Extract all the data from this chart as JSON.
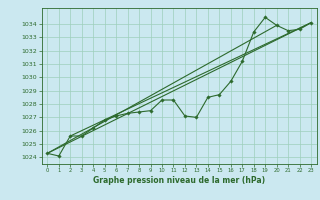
{
  "xlabel": "Graphe pression niveau de la mer (hPa)",
  "bg_color": "#cbe8f0",
  "grid_color": "#9ecfbb",
  "line_color": "#2d6a2d",
  "ylim": [
    1023.5,
    1035.2
  ],
  "xlim": [
    -0.5,
    23.5
  ],
  "yticks": [
    1024,
    1025,
    1026,
    1027,
    1028,
    1029,
    1030,
    1031,
    1032,
    1033,
    1034
  ],
  "xticks": [
    0,
    1,
    2,
    3,
    4,
    5,
    6,
    7,
    8,
    9,
    10,
    11,
    12,
    13,
    14,
    15,
    16,
    17,
    18,
    19,
    20,
    21,
    22,
    23
  ],
  "main_line": [
    [
      0,
      1024.3
    ],
    [
      1,
      1024.1
    ],
    [
      2,
      1025.6
    ],
    [
      3,
      1025.6
    ],
    [
      4,
      1026.2
    ],
    [
      5,
      1026.8
    ],
    [
      6,
      1027.1
    ],
    [
      7,
      1027.3
    ],
    [
      8,
      1027.4
    ],
    [
      9,
      1027.5
    ],
    [
      10,
      1028.3
    ],
    [
      11,
      1028.3
    ],
    [
      12,
      1027.1
    ],
    [
      13,
      1027.0
    ],
    [
      14,
      1028.5
    ],
    [
      15,
      1028.7
    ],
    [
      16,
      1029.7
    ],
    [
      17,
      1031.2
    ],
    [
      18,
      1033.4
    ],
    [
      19,
      1034.5
    ],
    [
      20,
      1033.9
    ],
    [
      21,
      1033.5
    ],
    [
      22,
      1033.6
    ],
    [
      23,
      1034.1
    ]
  ],
  "trend_line1": [
    [
      0,
      1024.3
    ],
    [
      23,
      1034.1
    ]
  ],
  "trend_line2": [
    [
      2,
      1025.6
    ],
    [
      23,
      1034.1
    ]
  ],
  "trend_line3": [
    [
      0,
      1024.3
    ],
    [
      20,
      1033.9
    ]
  ]
}
